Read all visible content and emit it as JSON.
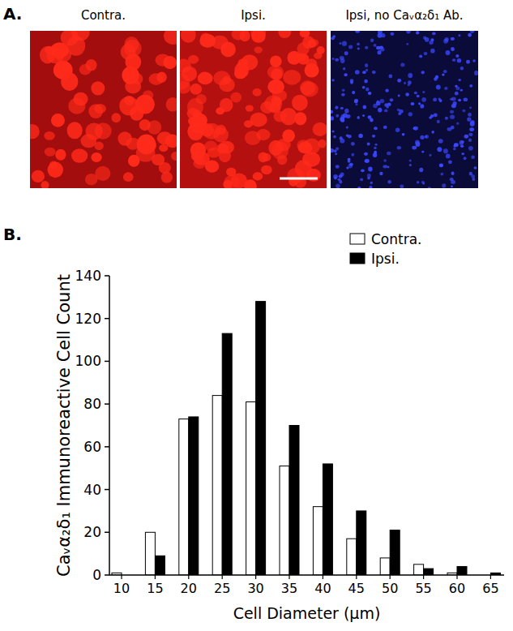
{
  "panel_labels": [
    "A.",
    "B."
  ],
  "images": [
    "Contra.",
    "Ipsi.",
    "Ipsi, no Caᵥα₂δ₁ Ab."
  ],
  "chart_data": {
    "type": "bar",
    "x_label": "Cell Diameter (μm)",
    "y_label": "Caᵥα₂δ₁ Immunoreactive Cell Count",
    "categories": [
      "10",
      "15",
      "20",
      "25",
      "30",
      "35",
      "40",
      "45",
      "50",
      "55",
      "60",
      "65"
    ],
    "series": [
      {
        "name": "Contra.",
        "color": "#ffffff",
        "values": [
          1,
          20,
          73,
          84,
          81,
          51,
          32,
          17,
          8,
          5,
          1,
          0
        ]
      },
      {
        "name": "Ipsi.",
        "color": "#000000",
        "values": [
          0,
          9,
          74,
          113,
          128,
          70,
          52,
          30,
          21,
          3,
          4,
          1
        ]
      }
    ],
    "ylim": [
      0,
      140
    ],
    "yticks": [
      0,
      20,
      40,
      60,
      80,
      100,
      120,
      140
    ],
    "grid": false,
    "legend": "top-right"
  }
}
